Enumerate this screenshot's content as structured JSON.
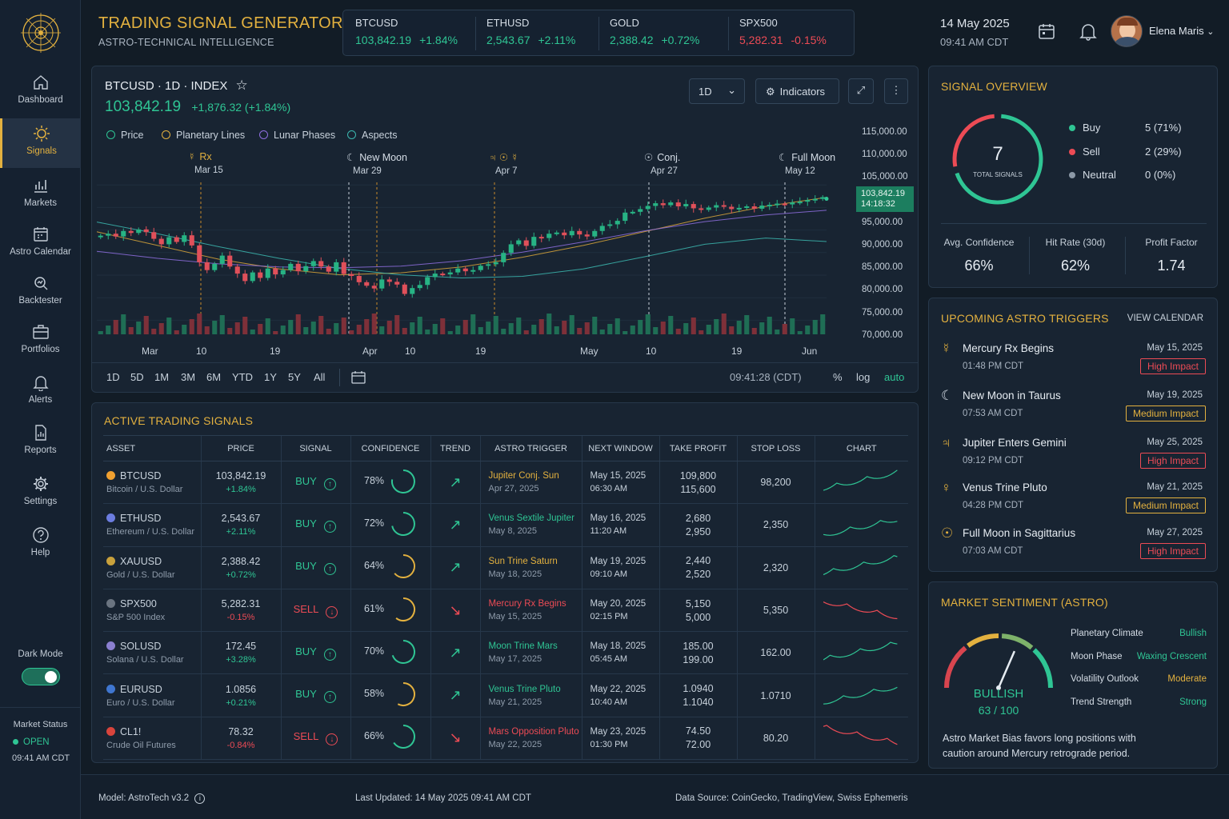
{
  "app": {
    "title": "TRADING SIGNAL GENERATOR",
    "subtitle": "ASTRO-TECHNICAL INTELLIGENCE"
  },
  "ticker": [
    {
      "symbol": "BTCUSD",
      "price": "103,842.19",
      "change": "+1.84%",
      "dir": "up"
    },
    {
      "symbol": "ETHUSD",
      "price": "2,543.67",
      "change": "+2.11%",
      "dir": "up"
    },
    {
      "symbol": "GOLD",
      "price": "2,388.42",
      "change": "+0.72%",
      "dir": "up"
    },
    {
      "symbol": "SPX500",
      "price": "5,282.31",
      "change": "-0.15%",
      "dir": "down"
    }
  ],
  "header": {
    "date": "14 May 2025",
    "time": "09:41 AM CDT",
    "user": "Elena Maris"
  },
  "nav": [
    {
      "label": "Dashboard",
      "icon": "home-icon"
    },
    {
      "label": "Signals",
      "icon": "signals-icon",
      "active": true
    },
    {
      "label": "Markets",
      "icon": "markets-icon"
    },
    {
      "label": "Astro Calendar",
      "icon": "calendar-icon"
    },
    {
      "label": "Backtester",
      "icon": "backtester-icon"
    },
    {
      "label": "Portfolios",
      "icon": "portfolio-icon"
    },
    {
      "label": "Alerts",
      "icon": "bell-icon"
    },
    {
      "label": "Reports",
      "icon": "reports-icon"
    },
    {
      "label": "Settings",
      "icon": "gear-icon"
    },
    {
      "label": "Help",
      "icon": "help-icon"
    }
  ],
  "sidebar": {
    "dark_mode": "Dark Mode",
    "market_status_label": "Market Status",
    "market_status": "OPEN",
    "market_time": "09:41 AM CDT"
  },
  "chart": {
    "title": "BTCUSD · 1D · INDEX",
    "price": "103,842.19",
    "change": "+1,876.32 (+1.84%)",
    "interval": "1D",
    "indicators": "Indicators",
    "legend": [
      {
        "label": "Price",
        "color": "#2fc594"
      },
      {
        "label": "Planetary Lines",
        "color": "#e3b13f"
      },
      {
        "label": "Lunar Phases",
        "color": "#8f6ee0"
      },
      {
        "label": "Aspects",
        "color": "#3cb8b0"
      }
    ],
    "events": [
      {
        "label": "Rx",
        "date": "Mar 15"
      },
      {
        "label": "New Moon",
        "date": "Mar 29"
      },
      {
        "label": "",
        "date": "Apr 7"
      },
      {
        "label": "Conj.",
        "date": "Apr 27"
      },
      {
        "label": "Full Moon",
        "date": "May 12"
      }
    ],
    "price_tag": "103,842.19",
    "time_tag": "14:18:32",
    "ranges": [
      "1D",
      "5D",
      "1M",
      "3M",
      "6M",
      "YTD",
      "1Y",
      "5Y",
      "All"
    ],
    "clock": "09:41:28 (CDT)",
    "scale": [
      "%",
      "log",
      "auto"
    ]
  },
  "chart_data": {
    "type": "candlestick",
    "y_ticks": [
      "115,000.00",
      "110,000.00",
      "105,000.00",
      "100,000.00",
      "95,000.00",
      "90,000.00",
      "85,000.00",
      "80,000.00",
      "75,000.00",
      "70,000.00"
    ],
    "x_ticks": [
      "Mar",
      "10",
      "19",
      "Apr",
      "10",
      "19",
      "May",
      "10",
      "19",
      "Jun"
    ],
    "ylim": [
      70000,
      115000
    ],
    "close": [
      94000,
      94500,
      93800,
      95200,
      94700,
      95600,
      94900,
      93200,
      91800,
      93600,
      92400,
      94100,
      91500,
      87200,
      85200,
      86800,
      88900,
      86100,
      84300,
      82400,
      84600,
      83200,
      85600,
      84100,
      85200,
      86800,
      84900,
      86200,
      87500,
      86100,
      84800,
      87200,
      84200,
      83700,
      82100,
      81200,
      80500,
      82800,
      82200,
      81500,
      79100,
      80600,
      81400,
      83400,
      84300,
      84100,
      84600,
      85600,
      84900,
      85200,
      86300,
      86700,
      87200,
      89600,
      91800,
      92800,
      91400,
      93700,
      93400,
      94500,
      94800,
      94100,
      95200,
      94300,
      93800,
      95200,
      96500,
      96900,
      97800,
      99900,
      100100,
      100800,
      101600,
      102300,
      101800,
      102500,
      101500,
      102100,
      101000,
      100600,
      101200,
      101800,
      101400,
      100800,
      101100,
      101500,
      100900,
      101700,
      101900,
      102200,
      102000,
      102500,
      102700,
      103100,
      103400,
      103842.19
    ],
    "planetary_line": [
      95000,
      91500,
      88000,
      85500,
      84000,
      84500,
      86000,
      88500,
      91500,
      95000,
      98500,
      101500,
      103800
    ],
    "lunar_line": [
      90000,
      88200,
      86800,
      86000,
      85800,
      86200,
      87600,
      89800,
      92400,
      95200,
      97600,
      99300,
      100500
    ],
    "aspect_line": [
      97500,
      94500,
      91200,
      88200,
      85600,
      84000,
      83200,
      83600,
      85500,
      88600,
      91800,
      93400,
      92500
    ]
  },
  "signals": {
    "title": "ACTIVE TRADING SIGNALS",
    "columns": [
      "ASSET",
      "PRICE",
      "SIGNAL",
      "CONFIDENCE",
      "TREND",
      "ASTRO TRIGGER",
      "NEXT WINDOW",
      "TAKE PROFIT",
      "STOP LOSS",
      "CHART"
    ],
    "rows": [
      {
        "asset": "BTCUSD",
        "name": "Bitcoin / U.S. Dollar",
        "coin": "#f0a030",
        "price": "103,842.19",
        "change": "+1.84%",
        "dir": "up",
        "signal": "BUY",
        "confidence": "78%",
        "conf": 0.78,
        "trigger": "Jupiter Conj. Sun",
        "trigger_date": "Apr 27, 2025",
        "tcolor": "#e3b13f",
        "window_date": "May 15, 2025",
        "window_time": "06:30 AM",
        "tp1": "109,800",
        "tp2": "115,600",
        "sl": "98,200"
      },
      {
        "asset": "ETHUSD",
        "name": "Ethereum / U.S. Dollar",
        "coin": "#6c7de0",
        "price": "2,543.67",
        "change": "+2.11%",
        "dir": "up",
        "signal": "BUY",
        "confidence": "72%",
        "conf": 0.72,
        "trigger": "Venus Sextile Jupiter",
        "trigger_date": "May 8, 2025",
        "tcolor": "#2fc594",
        "window_date": "May 16, 2025",
        "window_time": "11:20 AM",
        "tp1": "2,680",
        "tp2": "2,950",
        "sl": "2,350"
      },
      {
        "asset": "XAUUSD",
        "name": "Gold / U.S. Dollar",
        "coin": "#c9a13c",
        "price": "2,388.42",
        "change": "+0.72%",
        "dir": "up",
        "signal": "BUY",
        "confidence": "64%",
        "conf": 0.64,
        "trigger": "Sun Trine Saturn",
        "trigger_date": "May 18, 2025",
        "tcolor": "#e3b13f",
        "window_date": "May 19, 2025",
        "window_time": "09:10 AM",
        "tp1": "2,440",
        "tp2": "2,520",
        "sl": "2,320"
      },
      {
        "asset": "SPX500",
        "name": "S&P 500 Index",
        "coin": "#6a7480",
        "price": "5,282.31",
        "change": "-0.15%",
        "dir": "down",
        "signal": "SELL",
        "confidence": "61%",
        "conf": 0.61,
        "trigger": "Mercury Rx Begins",
        "trigger_date": "May 15, 2025",
        "tcolor": "#ec4b55",
        "window_date": "May 20, 2025",
        "window_time": "02:15 PM",
        "tp1": "5,150",
        "tp2": "5,000",
        "sl": "5,350"
      },
      {
        "asset": "SOLUSD",
        "name": "Solana / U.S. Dollar",
        "coin": "#8a7fd0",
        "price": "172.45",
        "change": "+3.28%",
        "dir": "up",
        "signal": "BUY",
        "confidence": "70%",
        "conf": 0.7,
        "trigger": "Moon Trine Mars",
        "trigger_date": "May 17, 2025",
        "tcolor": "#2fc594",
        "window_date": "May 18, 2025",
        "window_time": "05:45 AM",
        "tp1": "185.00",
        "tp2": "199.00",
        "sl": "162.00"
      },
      {
        "asset": "EURUSD",
        "name": "Euro / U.S. Dollar",
        "coin": "#3f76d0",
        "price": "1.0856",
        "change": "+0.21%",
        "dir": "up",
        "signal": "BUY",
        "confidence": "58%",
        "conf": 0.58,
        "trigger": "Venus Trine Pluto",
        "trigger_date": "May 21, 2025",
        "tcolor": "#2fc594",
        "window_date": "May 22, 2025",
        "window_time": "10:40 AM",
        "tp1": "1.0940",
        "tp2": "1.1040",
        "sl": "1.0710"
      },
      {
        "asset": "CL1!",
        "name": "Crude Oil Futures",
        "coin": "#d8443c",
        "price": "78.32",
        "change": "-0.84%",
        "dir": "down",
        "signal": "SELL",
        "confidence": "66%",
        "conf": 0.66,
        "trigger": "Mars Opposition Pluto",
        "trigger_date": "May 22, 2025",
        "tcolor": "#ec4b55",
        "window_date": "May 23, 2025",
        "window_time": "01:30 PM",
        "tp1": "74.50",
        "tp2": "72.00",
        "sl": "80.20"
      }
    ]
  },
  "overview": {
    "title": "SIGNAL OVERVIEW",
    "total": "7",
    "total_label": "TOTAL SIGNALS",
    "items": [
      {
        "label": "Buy",
        "value": "5 (71%)",
        "color": "#2fc594",
        "frac": 0.71
      },
      {
        "label": "Sell",
        "value": "2 (29%)",
        "color": "#ec4b55",
        "frac": 0.29
      },
      {
        "label": "Neutral",
        "value": "0 (0%)",
        "color": "#8b98a6",
        "frac": 0
      }
    ],
    "metrics": [
      {
        "label": "Avg. Confidence",
        "value": "66%"
      },
      {
        "label": "Hit Rate (30d)",
        "value": "62%"
      },
      {
        "label": "Profit Factor",
        "value": "1.74"
      }
    ]
  },
  "triggers": {
    "title": "UPCOMING ASTRO TRIGGERS",
    "link": "VIEW CALENDAR",
    "items": [
      {
        "icon": "mercury-icon",
        "name": "Mercury Rx Begins",
        "time": "01:48 PM CDT",
        "date": "May 15, 2025",
        "impact": "High Impact",
        "level": "high"
      },
      {
        "icon": "moon-icon",
        "name": "New Moon in Taurus",
        "time": "07:53 AM CDT",
        "date": "May 19, 2025",
        "impact": "Medium Impact",
        "level": "medium"
      },
      {
        "icon": "jupiter-icon",
        "name": "Jupiter Enters Gemini",
        "time": "09:12 PM CDT",
        "date": "May 25, 2025",
        "impact": "High Impact",
        "level": "high"
      },
      {
        "icon": "venus-icon",
        "name": "Venus Trine Pluto",
        "time": "04:28 PM CDT",
        "date": "May 21, 2025",
        "impact": "Medium Impact",
        "level": "medium"
      },
      {
        "icon": "sun-icon",
        "name": "Full Moon in Sagittarius",
        "time": "07:03 AM CDT",
        "date": "May 27, 2025",
        "impact": "High Impact",
        "level": "high"
      }
    ]
  },
  "sentiment": {
    "title": "MARKET SENTIMENT (ASTRO)",
    "label": "BULLISH",
    "score": "63 / 100",
    "score_value": 63,
    "rows": [
      {
        "label": "Planetary Climate",
        "value": "Bullish",
        "color": "#2fc594"
      },
      {
        "label": "Moon Phase",
        "value": "Waxing Crescent",
        "color": "#2fc594"
      },
      {
        "label": "Volatility Outlook",
        "value": "Moderate",
        "color": "#e3b13f"
      },
      {
        "label": "Trend Strength",
        "value": "Strong",
        "color": "#2fc594"
      }
    ],
    "note": "Astro Market Bias favors long positions with caution around Mercury retrograde period."
  },
  "footer": {
    "model": "Model: AstroTech v3.2",
    "updated": "Last Updated: 14 May 2025 09:41 AM CDT",
    "source": "Data Source: CoinGecko, TradingView, Swiss Ephemeris"
  }
}
